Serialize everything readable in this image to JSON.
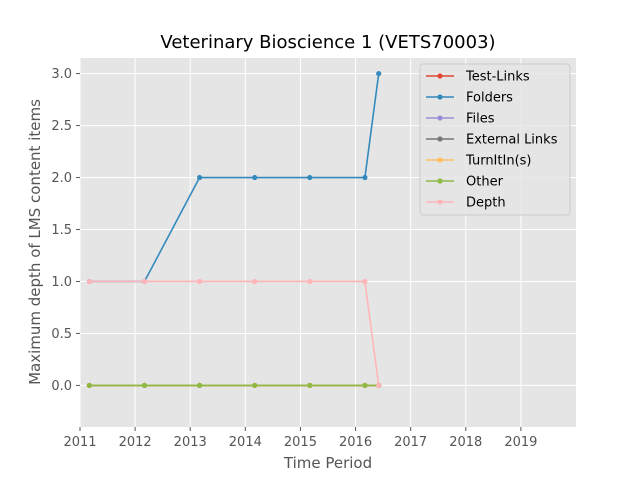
{
  "chart_data": {
    "type": "line",
    "title": "Veterinary Bioscience 1 (VETS70003)",
    "xlabel": "Time Period",
    "ylabel": "Maximum depth of LMS content items",
    "xlim": [
      2011,
      2020
    ],
    "ylim": [
      -0.4,
      3.15
    ],
    "xticks": [
      2011,
      2012,
      2013,
      2014,
      2015,
      2016,
      2017,
      2018,
      2019
    ],
    "yticks": [
      0.0,
      0.5,
      1.0,
      1.5,
      2.0,
      2.5,
      3.0
    ],
    "ytick_labels": [
      "0.0",
      "0.5",
      "1.0",
      "1.5",
      "2.0",
      "2.5",
      "3.0"
    ],
    "x": [
      2011.17,
      2012.17,
      2013.17,
      2014.17,
      2015.17,
      2016.17,
      2016.42
    ],
    "grid": true,
    "legend_position": "top-right",
    "series": [
      {
        "name": "Test-Links",
        "color": "#e24a33",
        "values": [
          0,
          0,
          0,
          0,
          0,
          0,
          0
        ]
      },
      {
        "name": "Folders",
        "color": "#348abd",
        "values": [
          1,
          1,
          2,
          2,
          2,
          2,
          3
        ]
      },
      {
        "name": "Files",
        "color": "#988ed5",
        "values": [
          0,
          0,
          0,
          0,
          0,
          0,
          0
        ]
      },
      {
        "name": "External Links",
        "color": "#777777",
        "values": [
          0,
          0,
          0,
          0,
          0,
          0,
          0
        ]
      },
      {
        "name": "TurnItIn(s)",
        "color": "#fbc15e",
        "values": [
          0,
          0,
          0,
          0,
          0,
          0,
          0
        ]
      },
      {
        "name": "Other",
        "color": "#8eba42",
        "values": [
          0,
          0,
          0,
          0,
          0,
          0,
          0
        ]
      },
      {
        "name": "Depth",
        "color": "#ffb5b8",
        "values": [
          1,
          1,
          1,
          1,
          1,
          1,
          0
        ]
      }
    ]
  }
}
